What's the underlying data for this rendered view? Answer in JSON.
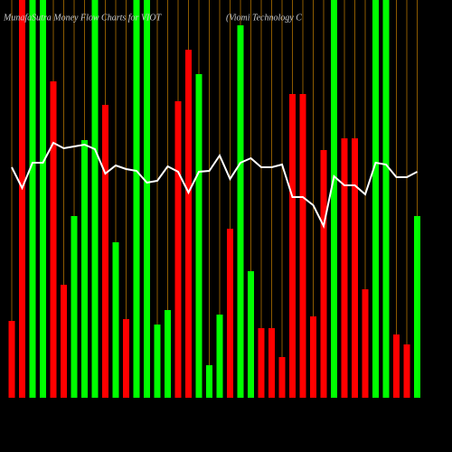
{
  "chart_data": {
    "type": "bar",
    "title": "MunafaSutra  Money Flow  Charts for VIOT",
    "subtitle": "(Viomi  Technology C",
    "categories": [
      null,
      null,
      null,
      null,
      null,
      null,
      null,
      null,
      null,
      null,
      null,
      null,
      null,
      null,
      null,
      null,
      null,
      null,
      null,
      null,
      null,
      null,
      null,
      null,
      null,
      null,
      null,
      null,
      null,
      null,
      null,
      null,
      null,
      null,
      null,
      null,
      null,
      null,
      null,
      null
    ],
    "values": [
      85,
      440,
      440,
      440,
      350,
      125,
      201,
      285,
      440,
      324,
      172,
      87,
      440,
      440,
      81,
      97,
      328,
      385,
      358,
      36,
      92,
      187,
      412,
      140,
      77,
      77,
      45,
      336,
      336,
      90,
      274,
      440,
      287,
      287,
      120,
      440,
      440,
      70,
      59,
      201
    ],
    "colors": [
      "#ff0000",
      "#ff0000",
      "#00ff00",
      "#00ff00",
      "#ff0000",
      "#ff0000",
      "#00ff00",
      "#00ff00",
      "#00ff00",
      "#ff0000",
      "#00ff00",
      "#ff0000",
      "#00ff00",
      "#00ff00",
      "#00ff00",
      "#00ff00",
      "#ff0000",
      "#ff0000",
      "#00ff00",
      "#00ff00",
      "#00ff00",
      "#ff0000",
      "#00ff00",
      "#00ff00",
      "#ff0000",
      "#ff0000",
      "#ff0000",
      "#ff0000",
      "#ff0000",
      "#ff0000",
      "#ff0000",
      "#00ff00",
      "#ff0000",
      "#ff0000",
      "#ff0000",
      "#00ff00",
      "#00ff00",
      "#ff0000",
      "#ff0000",
      "#00ff00"
    ],
    "line": {
      "color": "#ffffff",
      "values": [
        255,
        232,
        260,
        260,
        282,
        276,
        278,
        280,
        275,
        248,
        257,
        253,
        251,
        238,
        240,
        256,
        250,
        227,
        250,
        251,
        268,
        242,
        260,
        265,
        255,
        255,
        258,
        222,
        222,
        213,
        190,
        245,
        235,
        235,
        225,
        260,
        258,
        244,
        244,
        250
      ]
    },
    "ylim": [
      0,
      440
    ],
    "grid": true,
    "grid_color": "#8b5a00"
  }
}
